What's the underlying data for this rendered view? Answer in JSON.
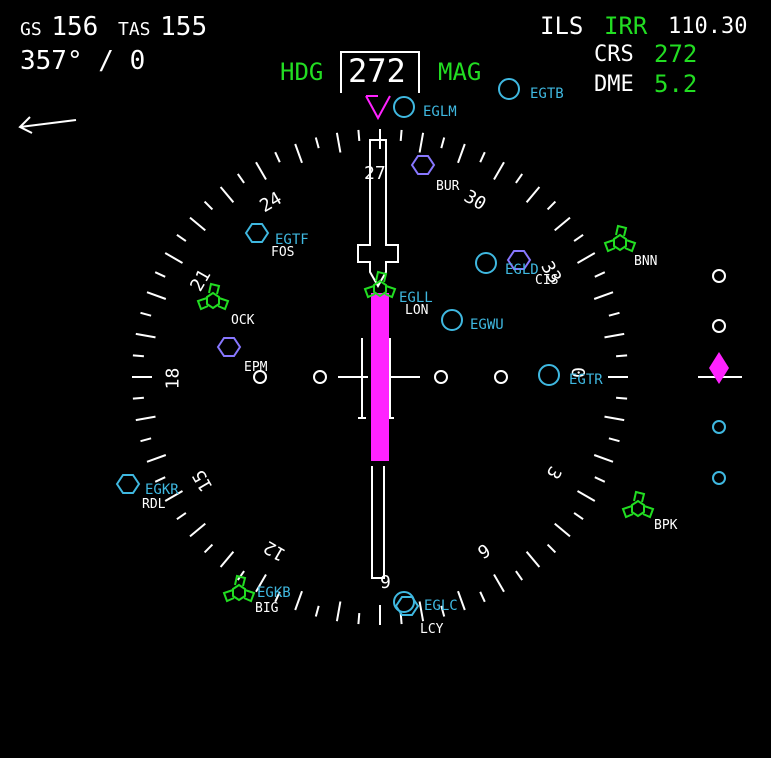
{
  "top_left": {
    "gs_label": "GS",
    "gs_value": "156",
    "tas_label": "TAS",
    "tas_value": "155",
    "wind": "357° / 0"
  },
  "heading": {
    "hdg_label": "HDG",
    "value": "272",
    "mag_label": "MAG"
  },
  "top_right": {
    "ils_label": "ILS",
    "ident": "IRR",
    "freq": "110.30",
    "crs_label": "CRS",
    "crs_value": "272",
    "dme_label": "DME",
    "dme_value": "5.2"
  },
  "compass_labels": {
    "n27": "27",
    "n30": "30",
    "n33": "33",
    "n0": "0",
    "n3": "3",
    "n6": "6",
    "n9": "9",
    "n12": "12",
    "n15": "15",
    "n18": "18",
    "n21": "21",
    "n24": "24"
  },
  "airports": {
    "egtb": "EGTB",
    "eglm": "EGLM",
    "egtf": "EGTF",
    "egld": "EGLD",
    "egll": "EGLL",
    "egwu": "EGWU",
    "egtr": "EGTR",
    "egkr": "EGKR",
    "egkb": "EGKB",
    "eglc": "EGLC"
  },
  "navaids": {
    "bur": "BUR",
    "fos": "FOS",
    "bnn": "BNN",
    "cis": "CIS",
    "ock": "OCK",
    "lon": "LON",
    "epm": "EPM",
    "rdl": "RDL",
    "bpk": "BPK",
    "big": "BIG",
    "lcy": "LCY"
  },
  "colors": {
    "white": "#ffffff",
    "green": "#22dd22",
    "cyan": "#3fb8e0",
    "magenta": "#ff22ff",
    "navaid_blue": "#8877ff"
  },
  "glideslope": {
    "deviation_dots": 4
  }
}
